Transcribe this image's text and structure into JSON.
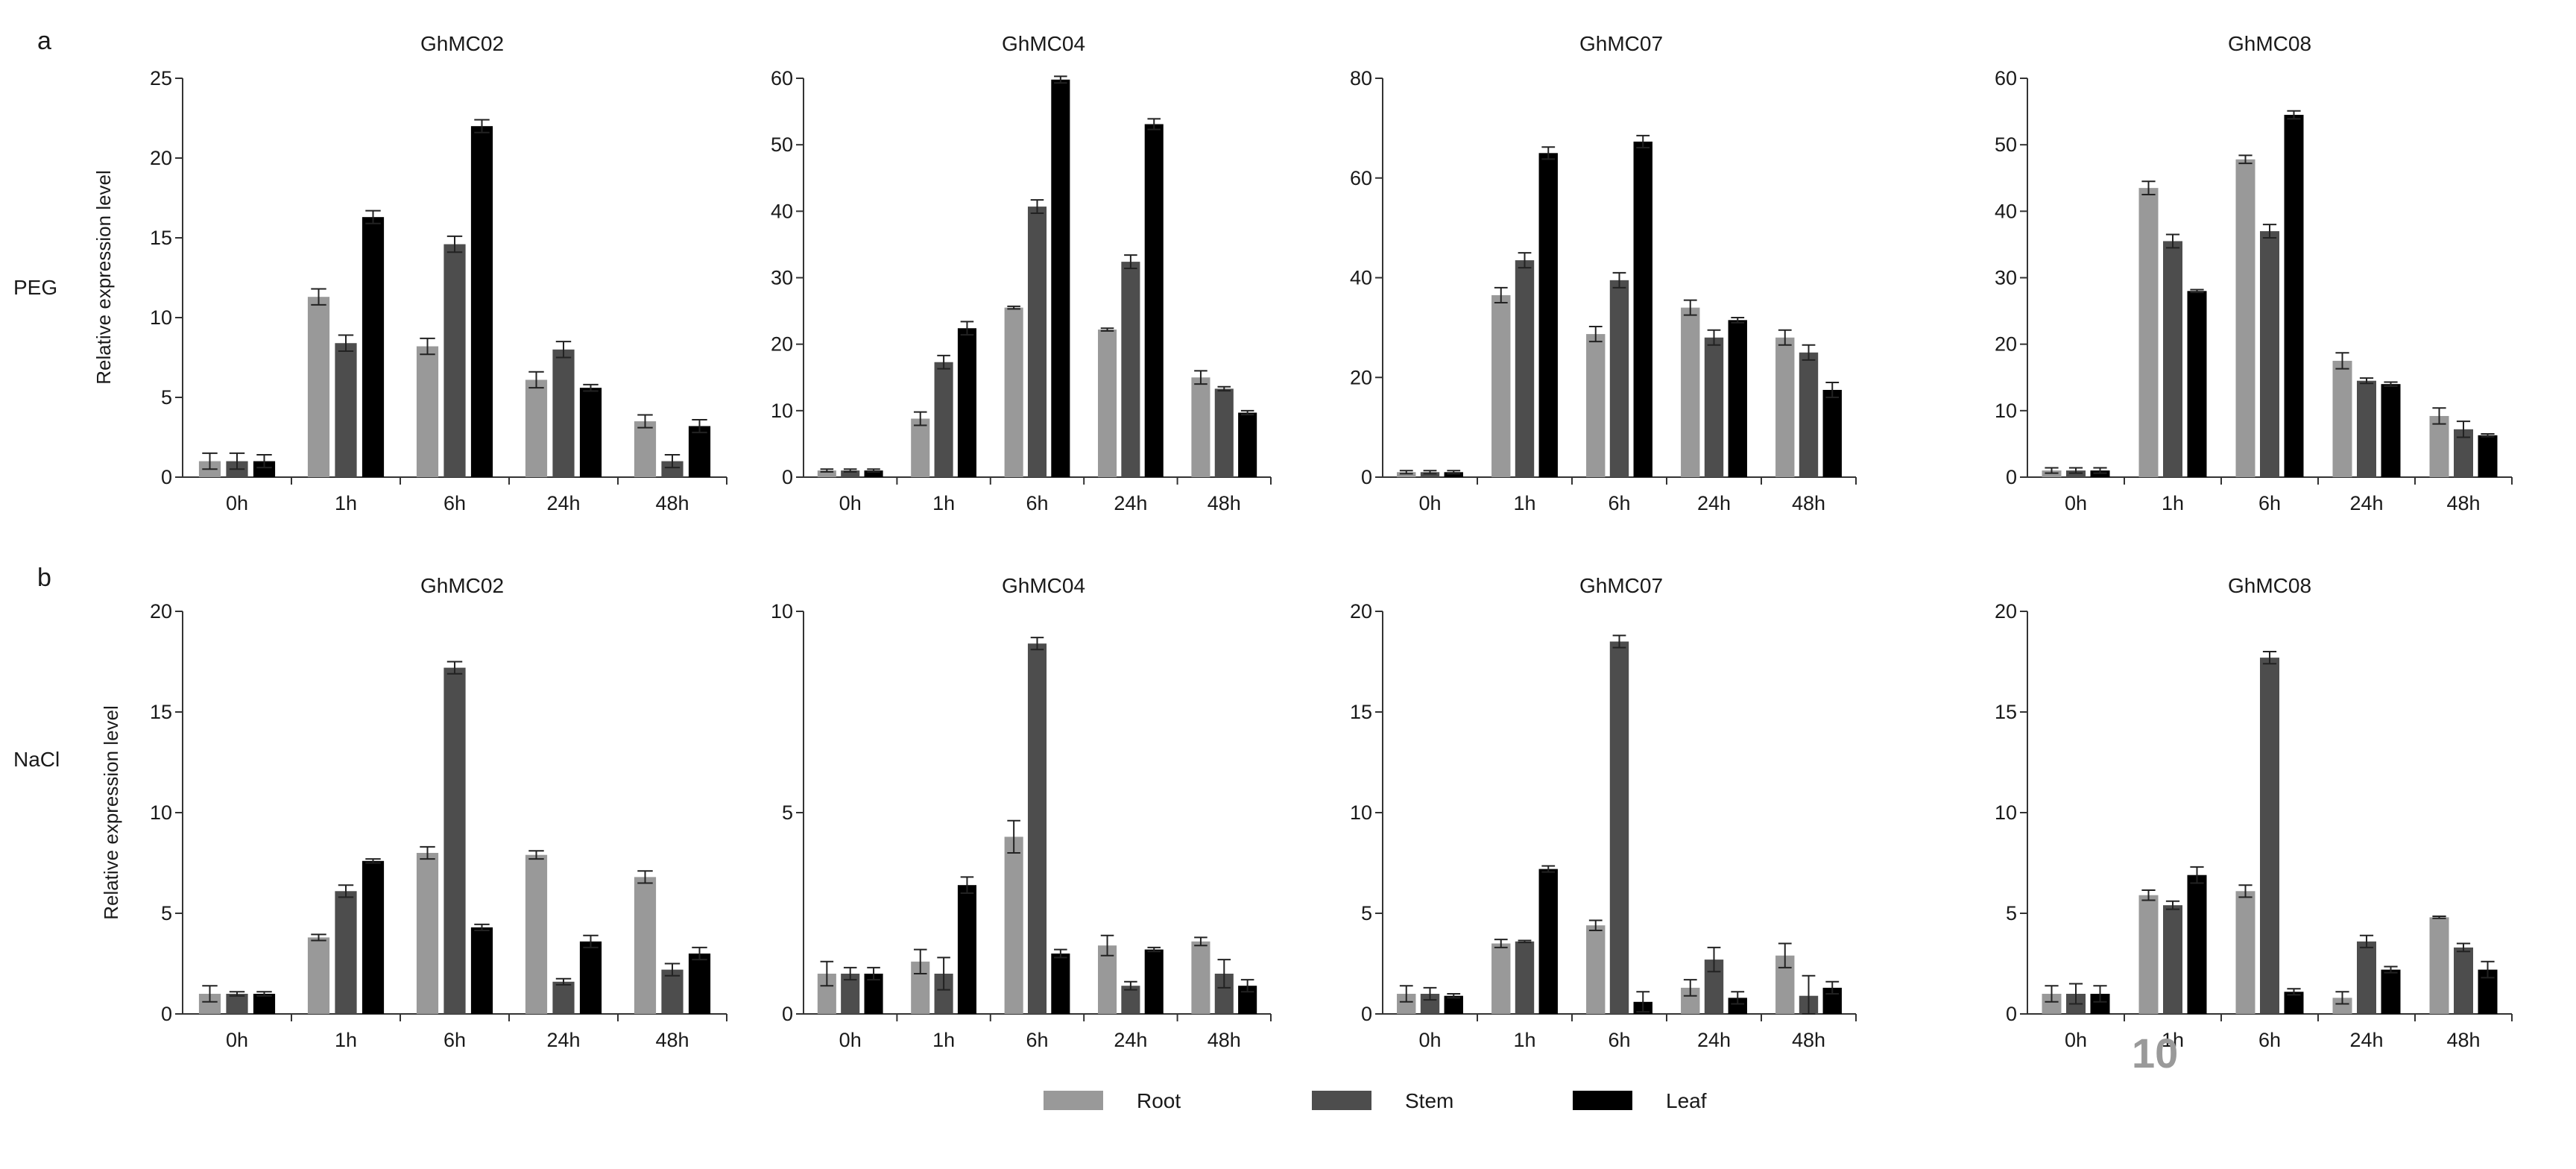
{
  "figure": {
    "panel_labels": [
      "a",
      "b"
    ],
    "row_labels": [
      "PEG",
      "NaCl"
    ],
    "page_number": "10"
  },
  "legend": [
    {
      "name": "Root",
      "color": "#999999"
    },
    {
      "name": "Stem",
      "color": "#4d4d4d"
    },
    {
      "name": "Leaf",
      "color": "#000000"
    }
  ],
  "chart_data": [
    {
      "type": "bar",
      "treatment": "PEG",
      "title": "GhMC02",
      "categories": [
        "0h",
        "1h",
        "6h",
        "24h",
        "48h"
      ],
      "ylabel": "Relative expression level",
      "ylim": [
        0,
        25
      ],
      "yticks": [
        0,
        5,
        10,
        15,
        20,
        25
      ],
      "series": [
        {
          "name": "Root",
          "values": [
            1.0,
            11.3,
            8.2,
            6.1,
            3.5
          ],
          "errors": [
            0.5,
            0.5,
            0.5,
            0.5,
            0.4
          ]
        },
        {
          "name": "Stem",
          "values": [
            1.0,
            8.4,
            14.6,
            8.0,
            1.0
          ],
          "errors": [
            0.5,
            0.5,
            0.5,
            0.5,
            0.4
          ]
        },
        {
          "name": "Leaf",
          "values": [
            1.0,
            16.3,
            22.0,
            5.6,
            3.2
          ],
          "errors": [
            0.4,
            0.4,
            0.4,
            0.2,
            0.4
          ]
        }
      ]
    },
    {
      "type": "bar",
      "treatment": "PEG",
      "title": "GhMC04",
      "categories": [
        "0h",
        "1h",
        "6h",
        "24h",
        "48h"
      ],
      "ylabel": "",
      "ylim": [
        0,
        60
      ],
      "yticks": [
        0,
        10,
        20,
        30,
        40,
        50,
        60
      ],
      "series": [
        {
          "name": "Root",
          "values": [
            1.0,
            8.8,
            25.5,
            22.2,
            15.0
          ],
          "errors": [
            0.2,
            1.0,
            0.2,
            0.2,
            1.0
          ]
        },
        {
          "name": "Stem",
          "values": [
            1.0,
            17.3,
            40.7,
            32.4,
            13.3
          ],
          "errors": [
            0.2,
            1.0,
            1.0,
            1.0,
            0.3
          ]
        },
        {
          "name": "Leaf",
          "values": [
            1.0,
            22.4,
            59.8,
            53.1,
            9.7
          ],
          "errors": [
            0.2,
            1.0,
            0.5,
            0.8,
            0.3
          ]
        }
      ]
    },
    {
      "type": "bar",
      "treatment": "PEG",
      "title": "GhMC07",
      "categories": [
        "0h",
        "1h",
        "6h",
        "24h",
        "48h"
      ],
      "ylabel": "",
      "ylim": [
        0,
        80
      ],
      "yticks": [
        0,
        20,
        40,
        60,
        80
      ],
      "series": [
        {
          "name": "Root",
          "values": [
            1.0,
            36.5,
            28.7,
            34.0,
            28.0
          ],
          "errors": [
            0.3,
            1.5,
            1.5,
            1.5,
            1.5
          ]
        },
        {
          "name": "Stem",
          "values": [
            1.0,
            43.5,
            39.5,
            28.0,
            25.0
          ],
          "errors": [
            0.3,
            1.5,
            1.5,
            1.5,
            1.5
          ]
        },
        {
          "name": "Leaf",
          "values": [
            1.0,
            65.0,
            67.3,
            31.5,
            17.5
          ],
          "errors": [
            0.3,
            1.2,
            1.2,
            0.5,
            1.5
          ]
        }
      ]
    },
    {
      "type": "bar",
      "treatment": "PEG",
      "title": "GhMC08",
      "categories": [
        "0h",
        "1h",
        "6h",
        "24h",
        "48h"
      ],
      "ylabel": "",
      "ylim": [
        0,
        60
      ],
      "yticks": [
        0,
        10,
        20,
        30,
        40,
        50,
        60
      ],
      "series": [
        {
          "name": "Root",
          "values": [
            1.0,
            43.5,
            47.8,
            17.5,
            9.2
          ],
          "errors": [
            0.4,
            1.0,
            0.6,
            1.2,
            1.2
          ]
        },
        {
          "name": "Stem",
          "values": [
            1.0,
            35.5,
            37.0,
            14.5,
            7.2
          ],
          "errors": [
            0.4,
            1.0,
            1.0,
            0.4,
            1.2
          ]
        },
        {
          "name": "Leaf",
          "values": [
            1.0,
            28.0,
            54.5,
            14.0,
            6.3
          ],
          "errors": [
            0.4,
            0.2,
            0.6,
            0.3,
            0.2
          ]
        }
      ]
    },
    {
      "type": "bar",
      "treatment": "NaCl",
      "title": "GhMC02",
      "categories": [
        "0h",
        "1h",
        "6h",
        "24h",
        "48h"
      ],
      "ylabel": "Relative expression level",
      "ylim": [
        0,
        20
      ],
      "yticks": [
        0,
        5,
        10,
        15,
        20
      ],
      "series": [
        {
          "name": "Root",
          "values": [
            1.0,
            3.8,
            8.0,
            7.9,
            6.8
          ],
          "errors": [
            0.4,
            0.15,
            0.3,
            0.2,
            0.3
          ]
        },
        {
          "name": "Stem",
          "values": [
            1.0,
            6.1,
            17.2,
            1.6,
            2.2
          ],
          "errors": [
            0.1,
            0.3,
            0.3,
            0.15,
            0.3
          ]
        },
        {
          "name": "Leaf",
          "values": [
            1.0,
            7.6,
            4.3,
            3.6,
            3.0
          ],
          "errors": [
            0.1,
            0.1,
            0.15,
            0.3,
            0.3
          ]
        }
      ]
    },
    {
      "type": "bar",
      "treatment": "NaCl",
      "title": "GhMC04",
      "categories": [
        "0h",
        "1h",
        "6h",
        "24h",
        "48h"
      ],
      "ylabel": "",
      "ylim": [
        0,
        10
      ],
      "yticks": [
        0,
        5,
        10
      ],
      "series": [
        {
          "name": "Root",
          "values": [
            1.0,
            1.3,
            4.4,
            1.7,
            1.8
          ],
          "errors": [
            0.3,
            0.3,
            0.4,
            0.25,
            0.1
          ]
        },
        {
          "name": "Stem",
          "values": [
            1.0,
            1.0,
            9.2,
            0.7,
            1.0
          ],
          "errors": [
            0.15,
            0.4,
            0.15,
            0.1,
            0.35
          ]
        },
        {
          "name": "Leaf",
          "values": [
            1.0,
            3.2,
            1.5,
            1.6,
            0.7
          ],
          "errors": [
            0.15,
            0.2,
            0.1,
            0.05,
            0.15
          ]
        }
      ]
    },
    {
      "type": "bar",
      "treatment": "NaCl",
      "title": "GhMC07",
      "categories": [
        "0h",
        "1h",
        "6h",
        "24h",
        "48h"
      ],
      "ylabel": "",
      "ylim": [
        0,
        20
      ],
      "yticks": [
        0,
        5,
        10,
        15,
        20
      ],
      "series": [
        {
          "name": "Root",
          "values": [
            1.0,
            3.5,
            4.4,
            1.3,
            2.9
          ],
          "errors": [
            0.4,
            0.2,
            0.25,
            0.4,
            0.6
          ]
        },
        {
          "name": "Stem",
          "values": [
            1.0,
            3.6,
            18.5,
            2.7,
            0.9
          ],
          "errors": [
            0.3,
            0.05,
            0.3,
            0.6,
            1.0
          ]
        },
        {
          "name": "Leaf",
          "values": [
            0.9,
            7.2,
            0.6,
            0.8,
            1.3
          ],
          "errors": [
            0.1,
            0.15,
            0.5,
            0.3,
            0.3
          ]
        }
      ]
    },
    {
      "type": "bar",
      "treatment": "NaCl",
      "title": "GhMC08",
      "categories": [
        "0h",
        "1h",
        "6h",
        "24h",
        "48h"
      ],
      "ylabel": "",
      "ylim": [
        0,
        20
      ],
      "yticks": [
        0,
        5,
        10,
        15,
        20
      ],
      "series": [
        {
          "name": "Root",
          "values": [
            1.0,
            5.9,
            6.1,
            0.8,
            4.8
          ],
          "errors": [
            0.4,
            0.25,
            0.3,
            0.3,
            0.05
          ]
        },
        {
          "name": "Stem",
          "values": [
            1.0,
            5.4,
            17.7,
            3.6,
            3.3
          ],
          "errors": [
            0.5,
            0.2,
            0.3,
            0.3,
            0.2
          ]
        },
        {
          "name": "Leaf",
          "values": [
            1.0,
            6.9,
            1.1,
            2.2,
            2.2
          ],
          "errors": [
            0.4,
            0.4,
            0.15,
            0.15,
            0.4
          ]
        }
      ]
    }
  ]
}
